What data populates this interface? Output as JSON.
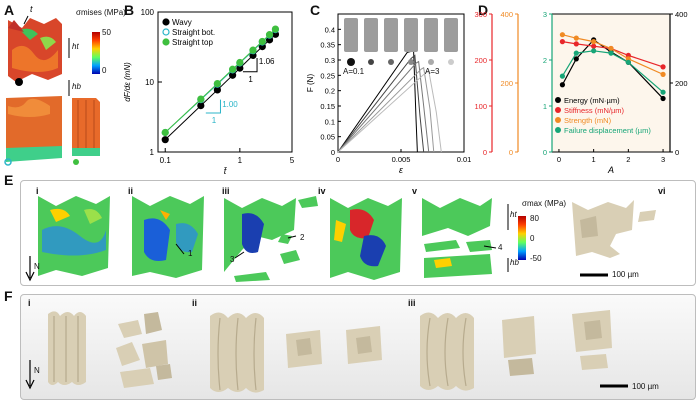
{
  "panels": {
    "A": {
      "label": "A",
      "t_label": "t",
      "cbar_title": "σmises (MPa)",
      "cbar_max": "50",
      "cbar_min": "0",
      "ht": "ht",
      "hb": "hb"
    },
    "B": {
      "label": "B"
    },
    "C": {
      "label": "C",
      "a_low": "A=0.1",
      "a_high": "A=3"
    },
    "D": {
      "label": "D"
    },
    "E": {
      "label": "E",
      "subs": [
        "i",
        "ii",
        "iii",
        "iv",
        "v",
        "vi"
      ],
      "cbar_title": "σmax (MPa)",
      "cbar_max": "80",
      "cbar_zero": "0",
      "cbar_min": "-50",
      "callouts": [
        "1",
        "2",
        "3",
        "4"
      ],
      "ht": "ht",
      "hb": "hb",
      "direction": "N",
      "scalebar": "100 µm"
    },
    "F": {
      "label": "F",
      "subs": [
        "i",
        "ii",
        "iii"
      ],
      "direction": "N",
      "scalebar": "100 µm"
    }
  },
  "chart_data": [
    {
      "panel": "B",
      "type": "line",
      "xlabel": "t̄",
      "ylabel": "dF/dε (mN)",
      "xscale": "log",
      "yscale": "log",
      "xlim": [
        0.08,
        5
      ],
      "ylim": [
        1,
        100
      ],
      "xticks": [
        "0.1",
        "1",
        "5"
      ],
      "yticks": [
        "1",
        "10",
        "100"
      ],
      "slope_annotations": [
        "1.00",
        "1.06"
      ],
      "slope_side": "1",
      "legend_position": "top-left",
      "series": [
        {
          "name": "Wavy",
          "color": "#000000",
          "marker": "filled",
          "x": [
            0.1,
            0.3,
            0.5,
            0.8,
            1.0,
            1.5,
            2.0,
            2.5,
            3.0
          ],
          "y": [
            1.5,
            4.6,
            7.7,
            12.5,
            15.8,
            24,
            32,
            40,
            48
          ]
        },
        {
          "name": "Straight bot.",
          "color": "#2bb5c8",
          "marker": "open",
          "x": [
            0.1,
            0.3,
            0.5,
            0.8,
            1.0,
            1.5,
            2.0,
            2.5,
            3.0
          ],
          "y": [
            1.9,
            5.6,
            9.3,
            14.9,
            18.7,
            28,
            37.3,
            46.7,
            56
          ]
        },
        {
          "name": "Straight top",
          "color": "#3fbf3f",
          "marker": "filled",
          "x": [
            0.1,
            0.3,
            0.5,
            0.8,
            1.0,
            1.5,
            2.0,
            2.5,
            3.0
          ],
          "y": [
            1.9,
            5.7,
            9.5,
            15.2,
            19,
            28.5,
            38,
            47.5,
            57
          ]
        }
      ]
    },
    {
      "panel": "C",
      "type": "line",
      "xlabel": "ε",
      "ylabel": "F (N)",
      "xlim": [
        0,
        0.01
      ],
      "ylim": [
        0,
        0.45
      ],
      "xticks": [
        "0",
        "0.005",
        "0.01"
      ],
      "yticks": [
        "0",
        "0.05",
        "0.1",
        "0.15",
        "0.2",
        "0.25",
        "0.3",
        "0.35",
        "0.4"
      ],
      "series": [
        {
          "name": "",
          "color": "#000000",
          "x": [
            0,
            0.0055,
            0.006,
            0.0062,
            0.0063
          ],
          "y": [
            0,
            0.325,
            0.33,
            0.1,
            0
          ]
        },
        {
          "name": "",
          "color": "#444444",
          "x": [
            0,
            0.0058,
            0.0061,
            0.0065,
            0.0068
          ],
          "y": [
            0,
            0.305,
            0.315,
            0.12,
            0
          ]
        },
        {
          "name": "",
          "color": "#777777",
          "x": [
            0,
            0.0062,
            0.0064,
            0.0068,
            0.0072
          ],
          "y": [
            0,
            0.29,
            0.295,
            0.15,
            0
          ]
        },
        {
          "name": "",
          "color": "#999999",
          "x": [
            0,
            0.0066,
            0.0068,
            0.0073,
            0.0076
          ],
          "y": [
            0,
            0.27,
            0.275,
            0.14,
            0
          ]
        },
        {
          "name": "",
          "color": "#bbbbbb",
          "x": [
            0,
            0.007,
            0.0072,
            0.0078,
            0.0082
          ],
          "y": [
            0,
            0.26,
            0.265,
            0.13,
            0
          ]
        }
      ]
    },
    {
      "panel": "D",
      "type": "line",
      "xlabel": "A",
      "xlim": [
        -0.2,
        3.2
      ],
      "xticks": [
        "0",
        "1",
        "2",
        "3"
      ],
      "axes": [
        {
          "side": "left-outer",
          "color": "#e8262a",
          "ylim": [
            0,
            300
          ],
          "ticks": [
            "0",
            "100",
            "200",
            "300"
          ]
        },
        {
          "side": "left-mid",
          "color": "#f08a24",
          "ylim": [
            0,
            400
          ],
          "ticks": [
            "0",
            "200",
            "400"
          ]
        },
        {
          "side": "left-inner",
          "color": "#17a577",
          "ylim": [
            0,
            3
          ],
          "ticks": [
            "0",
            "1",
            "2",
            "3"
          ]
        },
        {
          "side": "right",
          "color": "#000000",
          "ylim": [
            0,
            400
          ],
          "ticks": [
            "0",
            "200",
            "400"
          ]
        }
      ],
      "legend_position": "bottom-left",
      "series": [
        {
          "name": "Energy (mN·µm)",
          "color": "#000000",
          "axis": "right",
          "x": [
            0.1,
            0.5,
            1,
            1.5,
            2,
            3
          ],
          "y": [
            195,
            270,
            325,
            290,
            260,
            155
          ]
        },
        {
          "name": "Stiffness (mN/µm)",
          "color": "#e8262a",
          "axis": "left-outer",
          "x": [
            0.1,
            0.5,
            1,
            1.5,
            2,
            3
          ],
          "y": [
            240,
            235,
            230,
            225,
            210,
            185
          ]
        },
        {
          "name": "Strength (mN)",
          "color": "#f08a24",
          "axis": "left-mid",
          "x": [
            0.1,
            0.5,
            1,
            1.5,
            2,
            3
          ],
          "y": [
            340,
            330,
            320,
            300,
            270,
            225
          ]
        },
        {
          "name": "Failure displacement (µm)",
          "color": "#17a577",
          "axis": "left-inner",
          "x": [
            0.1,
            0.5,
            1,
            1.5,
            2,
            3
          ],
          "y": [
            1.65,
            2.15,
            2.2,
            2.15,
            1.95,
            1.3
          ]
        }
      ]
    }
  ]
}
